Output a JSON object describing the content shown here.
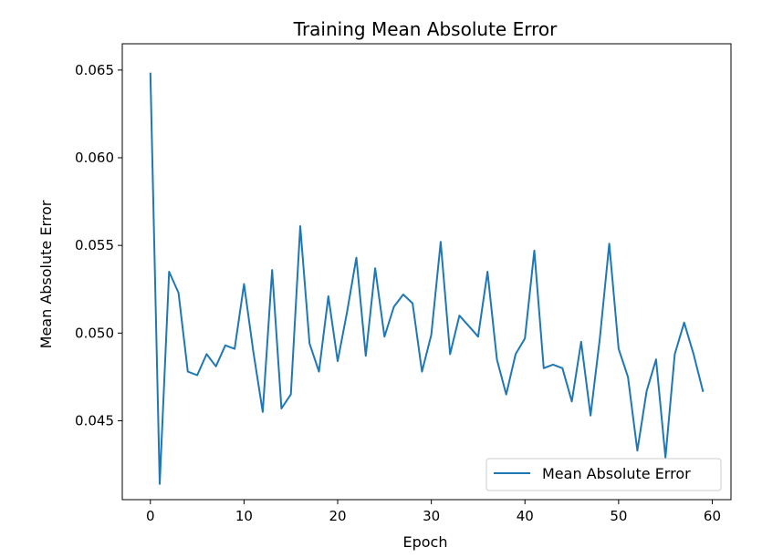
{
  "chart_data": {
    "type": "line",
    "title": "Training Mean Absolute Error",
    "xlabel": "Epoch",
    "ylabel": "Mean Absolute Error",
    "xlim": [
      -3,
      62
    ],
    "ylim": [
      0.0405,
      0.0665
    ],
    "xticks": [
      0,
      10,
      20,
      30,
      40,
      50,
      60
    ],
    "yticks": [
      0.045,
      0.05,
      0.055,
      0.06,
      0.065
    ],
    "ytick_labels": [
      "0.045",
      "0.050",
      "0.055",
      "0.060",
      "0.065"
    ],
    "grid": false,
    "legend_position": "lower-right",
    "series": [
      {
        "name": "Mean Absolute Error",
        "color": "#1f77b4",
        "x": [
          0,
          1,
          2,
          3,
          4,
          5,
          6,
          7,
          8,
          9,
          10,
          11,
          12,
          13,
          14,
          15,
          16,
          17,
          18,
          19,
          20,
          21,
          22,
          23,
          24,
          25,
          26,
          27,
          28,
          29,
          30,
          31,
          32,
          33,
          34,
          35,
          36,
          37,
          38,
          39,
          40,
          41,
          42,
          43,
          44,
          45,
          46,
          47,
          48,
          49,
          50,
          51,
          52,
          53,
          54,
          55,
          56,
          57,
          58,
          59
        ],
        "values": [
          0.0648,
          0.0414,
          0.0535,
          0.0523,
          0.0478,
          0.0476,
          0.0488,
          0.0481,
          0.0493,
          0.0491,
          0.0528,
          0.0489,
          0.0455,
          0.0536,
          0.0457,
          0.0465,
          0.0561,
          0.0494,
          0.0478,
          0.0521,
          0.0484,
          0.0512,
          0.0543,
          0.0487,
          0.0537,
          0.0498,
          0.0515,
          0.0522,
          0.0517,
          0.0478,
          0.0499,
          0.0552,
          0.0488,
          0.051,
          0.0504,
          0.0498,
          0.0535,
          0.0485,
          0.0465,
          0.0488,
          0.0497,
          0.0547,
          0.048,
          0.0482,
          0.048,
          0.0461,
          0.0495,
          0.0453,
          0.0497,
          0.0551,
          0.0491,
          0.0475,
          0.0433,
          0.0467,
          0.0485,
          0.0429,
          0.0488,
          0.0506,
          0.0488,
          0.0467
        ]
      }
    ]
  }
}
